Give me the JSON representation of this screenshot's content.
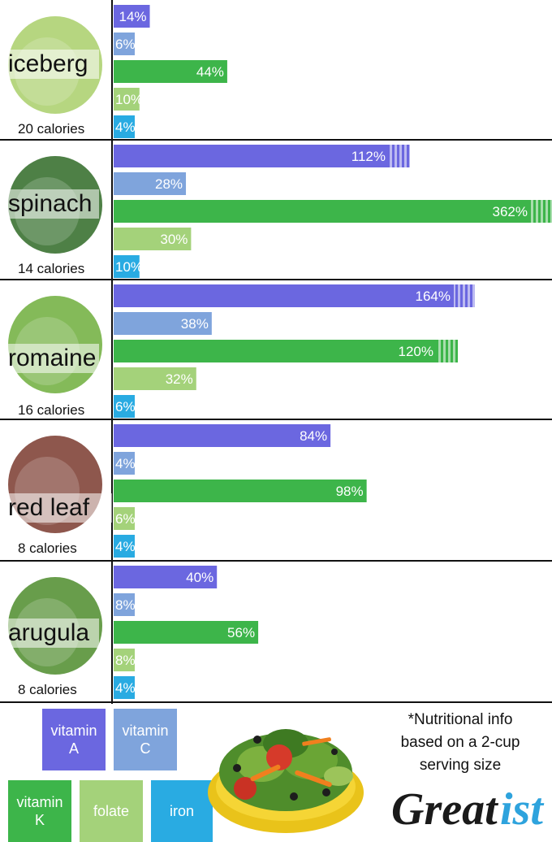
{
  "chart_data": {
    "type": "bar",
    "orientation": "horizontal",
    "categories": [
      "iceberg",
      "spinach",
      "romaine",
      "red leaf",
      "arugula"
    ],
    "calories": [
      "20 calories",
      "14 calories",
      "16 calories",
      "8 calories",
      "8 calories"
    ],
    "series": [
      {
        "name": "vitamin A",
        "color": "#6b67e0",
        "values": [
          14,
          112,
          164,
          84,
          40
        ]
      },
      {
        "name": "vitamin C",
        "color": "#7fa4dc",
        "values": [
          6,
          28,
          38,
          4,
          8
        ]
      },
      {
        "name": "vitamin K",
        "color": "#3db54a",
        "values": [
          44,
          362,
          120,
          98,
          56
        ]
      },
      {
        "name": "folate",
        "color": "#a4d27a",
        "values": [
          10,
          30,
          32,
          6,
          8
        ]
      },
      {
        "name": "iron",
        "color": "#29abe2",
        "values": [
          4,
          10,
          6,
          4,
          4
        ]
      }
    ],
    "value_suffix": "%",
    "legend_placement": "bottom-left"
  },
  "legend": [
    {
      "line1": "vitamin",
      "line2": "A",
      "color": "#6b67e0"
    },
    {
      "line1": "vitamin",
      "line2": "C",
      "color": "#7fa4dc"
    },
    {
      "line1": "vitamin",
      "line2": "K",
      "color": "#3db54a"
    },
    {
      "line1": "folate",
      "line2": "",
      "color": "#a4d27a"
    },
    {
      "line1": "iron",
      "line2": "",
      "color": "#29abe2"
    }
  ],
  "note": {
    "line1": "*Nutritional info",
    "line2": "based on a 2-cup",
    "line3": "serving size"
  },
  "brand": "Greatist"
}
